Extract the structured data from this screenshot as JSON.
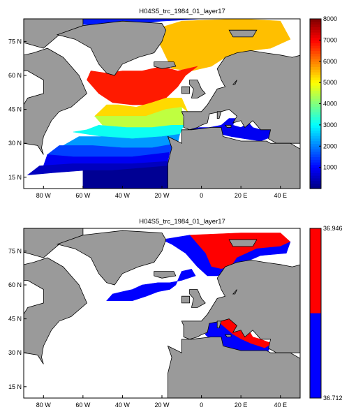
{
  "colors": {
    "land": "#9a9a9a",
    "water": "#ffffff",
    "map_red": "#ff0000",
    "map_blue": "#0000ff"
  },
  "chart_data": [
    {
      "type": "heatmap",
      "title": "H04S5_trc_1984_01_layer17",
      "xlabel": "",
      "ylabel": "",
      "xlim": [
        -90,
        50
      ],
      "ylim": [
        10,
        85
      ],
      "x_ticks": [
        {
          "value": -80,
          "label": "80 W"
        },
        {
          "value": -60,
          "label": "60 W"
        },
        {
          "value": -40,
          "label": "40 W"
        },
        {
          "value": -20,
          "label": "20 W"
        },
        {
          "value": 0,
          "label": "0"
        },
        {
          "value": 20,
          "label": "20 E"
        },
        {
          "value": 40,
          "label": "40 E"
        }
      ],
      "y_ticks": [
        {
          "value": 75,
          "label": "75 N"
        },
        {
          "value": 60,
          "label": "60 N"
        },
        {
          "value": 45,
          "label": "45 N"
        },
        {
          "value": 30,
          "label": "30 N"
        },
        {
          "value": 15,
          "label": "15 N"
        }
      ],
      "colorbar": {
        "min": 0,
        "max": 8000,
        "colormap": "jet",
        "ticks": [
          {
            "value": 1000,
            "label": "1000"
          },
          {
            "value": 2000,
            "label": "2000"
          },
          {
            "value": 3000,
            "label": "3000"
          },
          {
            "value": 4000,
            "label": "4000"
          },
          {
            "value": 5000,
            "label": "5000"
          },
          {
            "value": 6000,
            "label": "6000"
          },
          {
            "value": 7000,
            "label": "7000"
          },
          {
            "value": 8000,
            "label": "8000"
          }
        ]
      },
      "regions": [
        {
          "value": 1200,
          "points": [
            [
              -20,
              84
            ],
            [
              20,
              86
            ],
            [
              -35,
              87
            ],
            [
              -70,
              86
            ],
            [
              -80,
              83
            ],
            [
              -40,
              82
            ]
          ]
        },
        {
          "value": 5500,
          "points": [
            [
              -10,
              84
            ],
            [
              20,
              85
            ],
            [
              40,
              84
            ],
            [
              45,
              76
            ],
            [
              35,
              72
            ],
            [
              25,
              71
            ],
            [
              12,
              68
            ],
            [
              5,
              64
            ],
            [
              -5,
              62
            ],
            [
              -15,
              63
            ],
            [
              -20,
              72
            ],
            [
              -25,
              80
            ]
          ]
        },
        {
          "value": 6800,
          "points": [
            [
              -2,
              64
            ],
            [
              -12,
              62
            ],
            [
              -20,
              64
            ],
            [
              -30,
              62
            ],
            [
              -40,
              62
            ],
            [
              -48,
              61
            ],
            [
              -56,
              62
            ],
            [
              -58,
              58
            ],
            [
              -52,
              52
            ],
            [
              -45,
              48
            ],
            [
              -35,
              47
            ],
            [
              -25,
              47
            ],
            [
              -18,
              50
            ],
            [
              -12,
              55
            ],
            [
              -8,
              60
            ]
          ]
        },
        {
          "value": 5300,
          "points": [
            [
              -18,
              50
            ],
            [
              -25,
              48
            ],
            [
              -33,
              46
            ],
            [
              -42,
              47
            ],
            [
              -48,
              47
            ],
            [
              -54,
              42
            ],
            [
              -40,
              42
            ],
            [
              -28,
              42
            ],
            [
              -18,
              45
            ],
            [
              -10,
              46
            ],
            [
              -7,
              44
            ],
            [
              -10,
              50
            ]
          ]
        },
        {
          "value": 4500,
          "points": [
            [
              -10,
              46
            ],
            [
              -18,
              45
            ],
            [
              -28,
              42
            ],
            [
              -42,
              42
            ],
            [
              -54,
              42
            ],
            [
              -50,
              38
            ],
            [
              -38,
              37
            ],
            [
              -25,
              37
            ],
            [
              -15,
              38
            ],
            [
              -9,
              38
            ]
          ]
        },
        {
          "value": 3100,
          "points": [
            [
              -9,
              38
            ],
            [
              -15,
              38
            ],
            [
              -25,
              37
            ],
            [
              -38,
              37
            ],
            [
              -52,
              38
            ],
            [
              -58,
              36
            ],
            [
              -65,
              35
            ],
            [
              -50,
              33
            ],
            [
              -35,
              32
            ],
            [
              -20,
              33
            ],
            [
              -11,
              34
            ]
          ]
        },
        {
          "value": 2200,
          "points": [
            [
              -11,
              34
            ],
            [
              -20,
              33
            ],
            [
              -35,
              32
            ],
            [
              -50,
              33
            ],
            [
              -62,
              33
            ],
            [
              -70,
              29
            ],
            [
              -55,
              29
            ],
            [
              -40,
              28
            ],
            [
              -25,
              28
            ],
            [
              -15,
              29
            ],
            [
              -12,
              30
            ]
          ]
        },
        {
          "value": 1500,
          "points": [
            [
              -12,
              30
            ],
            [
              -25,
              28
            ],
            [
              -40,
              28
            ],
            [
              -55,
              29
            ],
            [
              -72,
              29
            ],
            [
              -78,
              25
            ],
            [
              -65,
              24
            ],
            [
              -50,
              24
            ],
            [
              -35,
              24
            ],
            [
              -22,
              25
            ],
            [
              -16,
              26
            ]
          ]
        },
        {
          "value": 900,
          "points": [
            [
              -16,
              26
            ],
            [
              -35,
              24
            ],
            [
              -65,
              24
            ],
            [
              -78,
              25
            ],
            [
              -80,
              20
            ],
            [
              -65,
              21
            ],
            [
              -50,
              21
            ],
            [
              -35,
              21
            ],
            [
              -20,
              21
            ],
            [
              -17,
              22
            ]
          ]
        },
        {
          "value": 500,
          "points": [
            [
              -17,
              22
            ],
            [
              -35,
              21
            ],
            [
              -65,
              21
            ],
            [
              -82,
              20
            ],
            [
              -88,
              16
            ],
            [
              -75,
              17
            ],
            [
              -60,
              18
            ],
            [
              -45,
              18
            ],
            [
              -25,
              18
            ],
            [
              -17,
              20
            ]
          ]
        },
        {
          "value": 150,
          "points": [
            [
              -17,
              20
            ],
            [
              -45,
              18
            ],
            [
              -60,
              18
            ],
            [
              -60,
              10
            ],
            [
              -17,
              10
            ]
          ]
        },
        {
          "value": 900,
          "points": [
            [
              -6,
              36
            ],
            [
              -1,
              37
            ],
            [
              4,
              37
            ],
            [
              10,
              38
            ],
            [
              14,
              41
            ],
            [
              17,
              41
            ],
            [
              16,
              38
            ],
            [
              20,
              37
            ],
            [
              24,
              39
            ],
            [
              26,
              37
            ],
            [
              30,
              36
            ],
            [
              35,
              36
            ],
            [
              36,
              33
            ],
            [
              30,
              31
            ],
            [
              22,
              32
            ],
            [
              15,
              33
            ],
            [
              10,
              34
            ],
            [
              5,
              36
            ],
            [
              -2,
              35
            ],
            [
              -6,
              35
            ]
          ]
        }
      ]
    },
    {
      "type": "heatmap",
      "title": "H04S5_trc_1984_01_layer17",
      "xlabel": "",
      "ylabel": "",
      "xlim": [
        -90,
        50
      ],
      "ylim": [
        10,
        85
      ],
      "x_ticks": [
        {
          "value": -80,
          "label": "80 W"
        },
        {
          "value": -60,
          "label": "60 W"
        },
        {
          "value": -40,
          "label": "40 W"
        },
        {
          "value": -20,
          "label": "20 W"
        },
        {
          "value": 0,
          "label": "0"
        },
        {
          "value": 20,
          "label": "20 E"
        },
        {
          "value": 40,
          "label": "40 E"
        }
      ],
      "y_ticks": [
        {
          "value": 75,
          "label": "75 N"
        },
        {
          "value": 60,
          "label": "60 N"
        },
        {
          "value": 45,
          "label": "45 N"
        },
        {
          "value": 30,
          "label": "30 N"
        },
        {
          "value": 15,
          "label": "15 N"
        }
      ],
      "colorbar": {
        "min": 36.712,
        "max": 36.946,
        "colormap": "blue-red two-level",
        "ticks": [
          {
            "value": 36.946,
            "label": "36.946"
          },
          {
            "value": 36.712,
            "label": "36.712"
          }
        ]
      },
      "regions": [
        {
          "class": "high",
          "points": [
            [
              -6,
              82
            ],
            [
              20,
              83
            ],
            [
              40,
              83
            ],
            [
              45,
              79
            ],
            [
              40,
              77
            ],
            [
              28,
              76
            ],
            [
              18,
              72
            ],
            [
              15,
              68
            ],
            [
              10,
              67
            ],
            [
              5,
              68
            ],
            [
              2,
              74
            ],
            [
              -5,
              79
            ]
          ]
        },
        {
          "class": "low",
          "points": [
            [
              -20,
              80
            ],
            [
              -6,
              82
            ],
            [
              2,
              74
            ],
            [
              5,
              68
            ],
            [
              10,
              67
            ],
            [
              15,
              68
            ],
            [
              18,
              72
            ],
            [
              28,
              76
            ],
            [
              40,
              77
            ],
            [
              45,
              79
            ],
            [
              43,
              74
            ],
            [
              30,
              73
            ],
            [
              22,
              70
            ],
            [
              15,
              66
            ],
            [
              8,
              64
            ],
            [
              3,
              64
            ],
            [
              -2,
              68
            ],
            [
              -8,
              74
            ],
            [
              -15,
              78
            ]
          ]
        },
        {
          "class": "low",
          "points": [
            [
              -10,
              66
            ],
            [
              -5,
              67
            ],
            [
              -3,
              64
            ],
            [
              -10,
              62
            ],
            [
              -16,
              61
            ],
            [
              -22,
              61
            ],
            [
              -30,
              60
            ],
            [
              -35,
              58
            ],
            [
              -40,
              57
            ],
            [
              -45,
              56
            ],
            [
              -48,
              53
            ],
            [
              -42,
              53
            ],
            [
              -35,
              53
            ],
            [
              -28,
              55
            ],
            [
              -22,
              57
            ],
            [
              -16,
              58
            ],
            [
              -13,
              60
            ]
          ]
        },
        {
          "class": "high",
          "points": [
            [
              8,
              44
            ],
            [
              14,
              45
            ],
            [
              18,
              43
            ],
            [
              22,
              42
            ],
            [
              24,
              40
            ],
            [
              26,
              37
            ],
            [
              30,
              36
            ],
            [
              36,
              34
            ],
            [
              32,
              32
            ],
            [
              25,
              34
            ],
            [
              20,
              36
            ],
            [
              16,
              38
            ],
            [
              12,
              41
            ]
          ]
        },
        {
          "class": "low",
          "points": [
            [
              4,
              43
            ],
            [
              8,
              44
            ],
            [
              12,
              41
            ],
            [
              16,
              38
            ],
            [
              20,
              36
            ],
            [
              25,
              34
            ],
            [
              32,
              32
            ],
            [
              36,
              34
            ],
            [
              34,
              31
            ],
            [
              28,
              30
            ],
            [
              20,
              31
            ],
            [
              12,
              33
            ],
            [
              6,
              35
            ],
            [
              2,
              38
            ]
          ]
        }
      ]
    }
  ]
}
